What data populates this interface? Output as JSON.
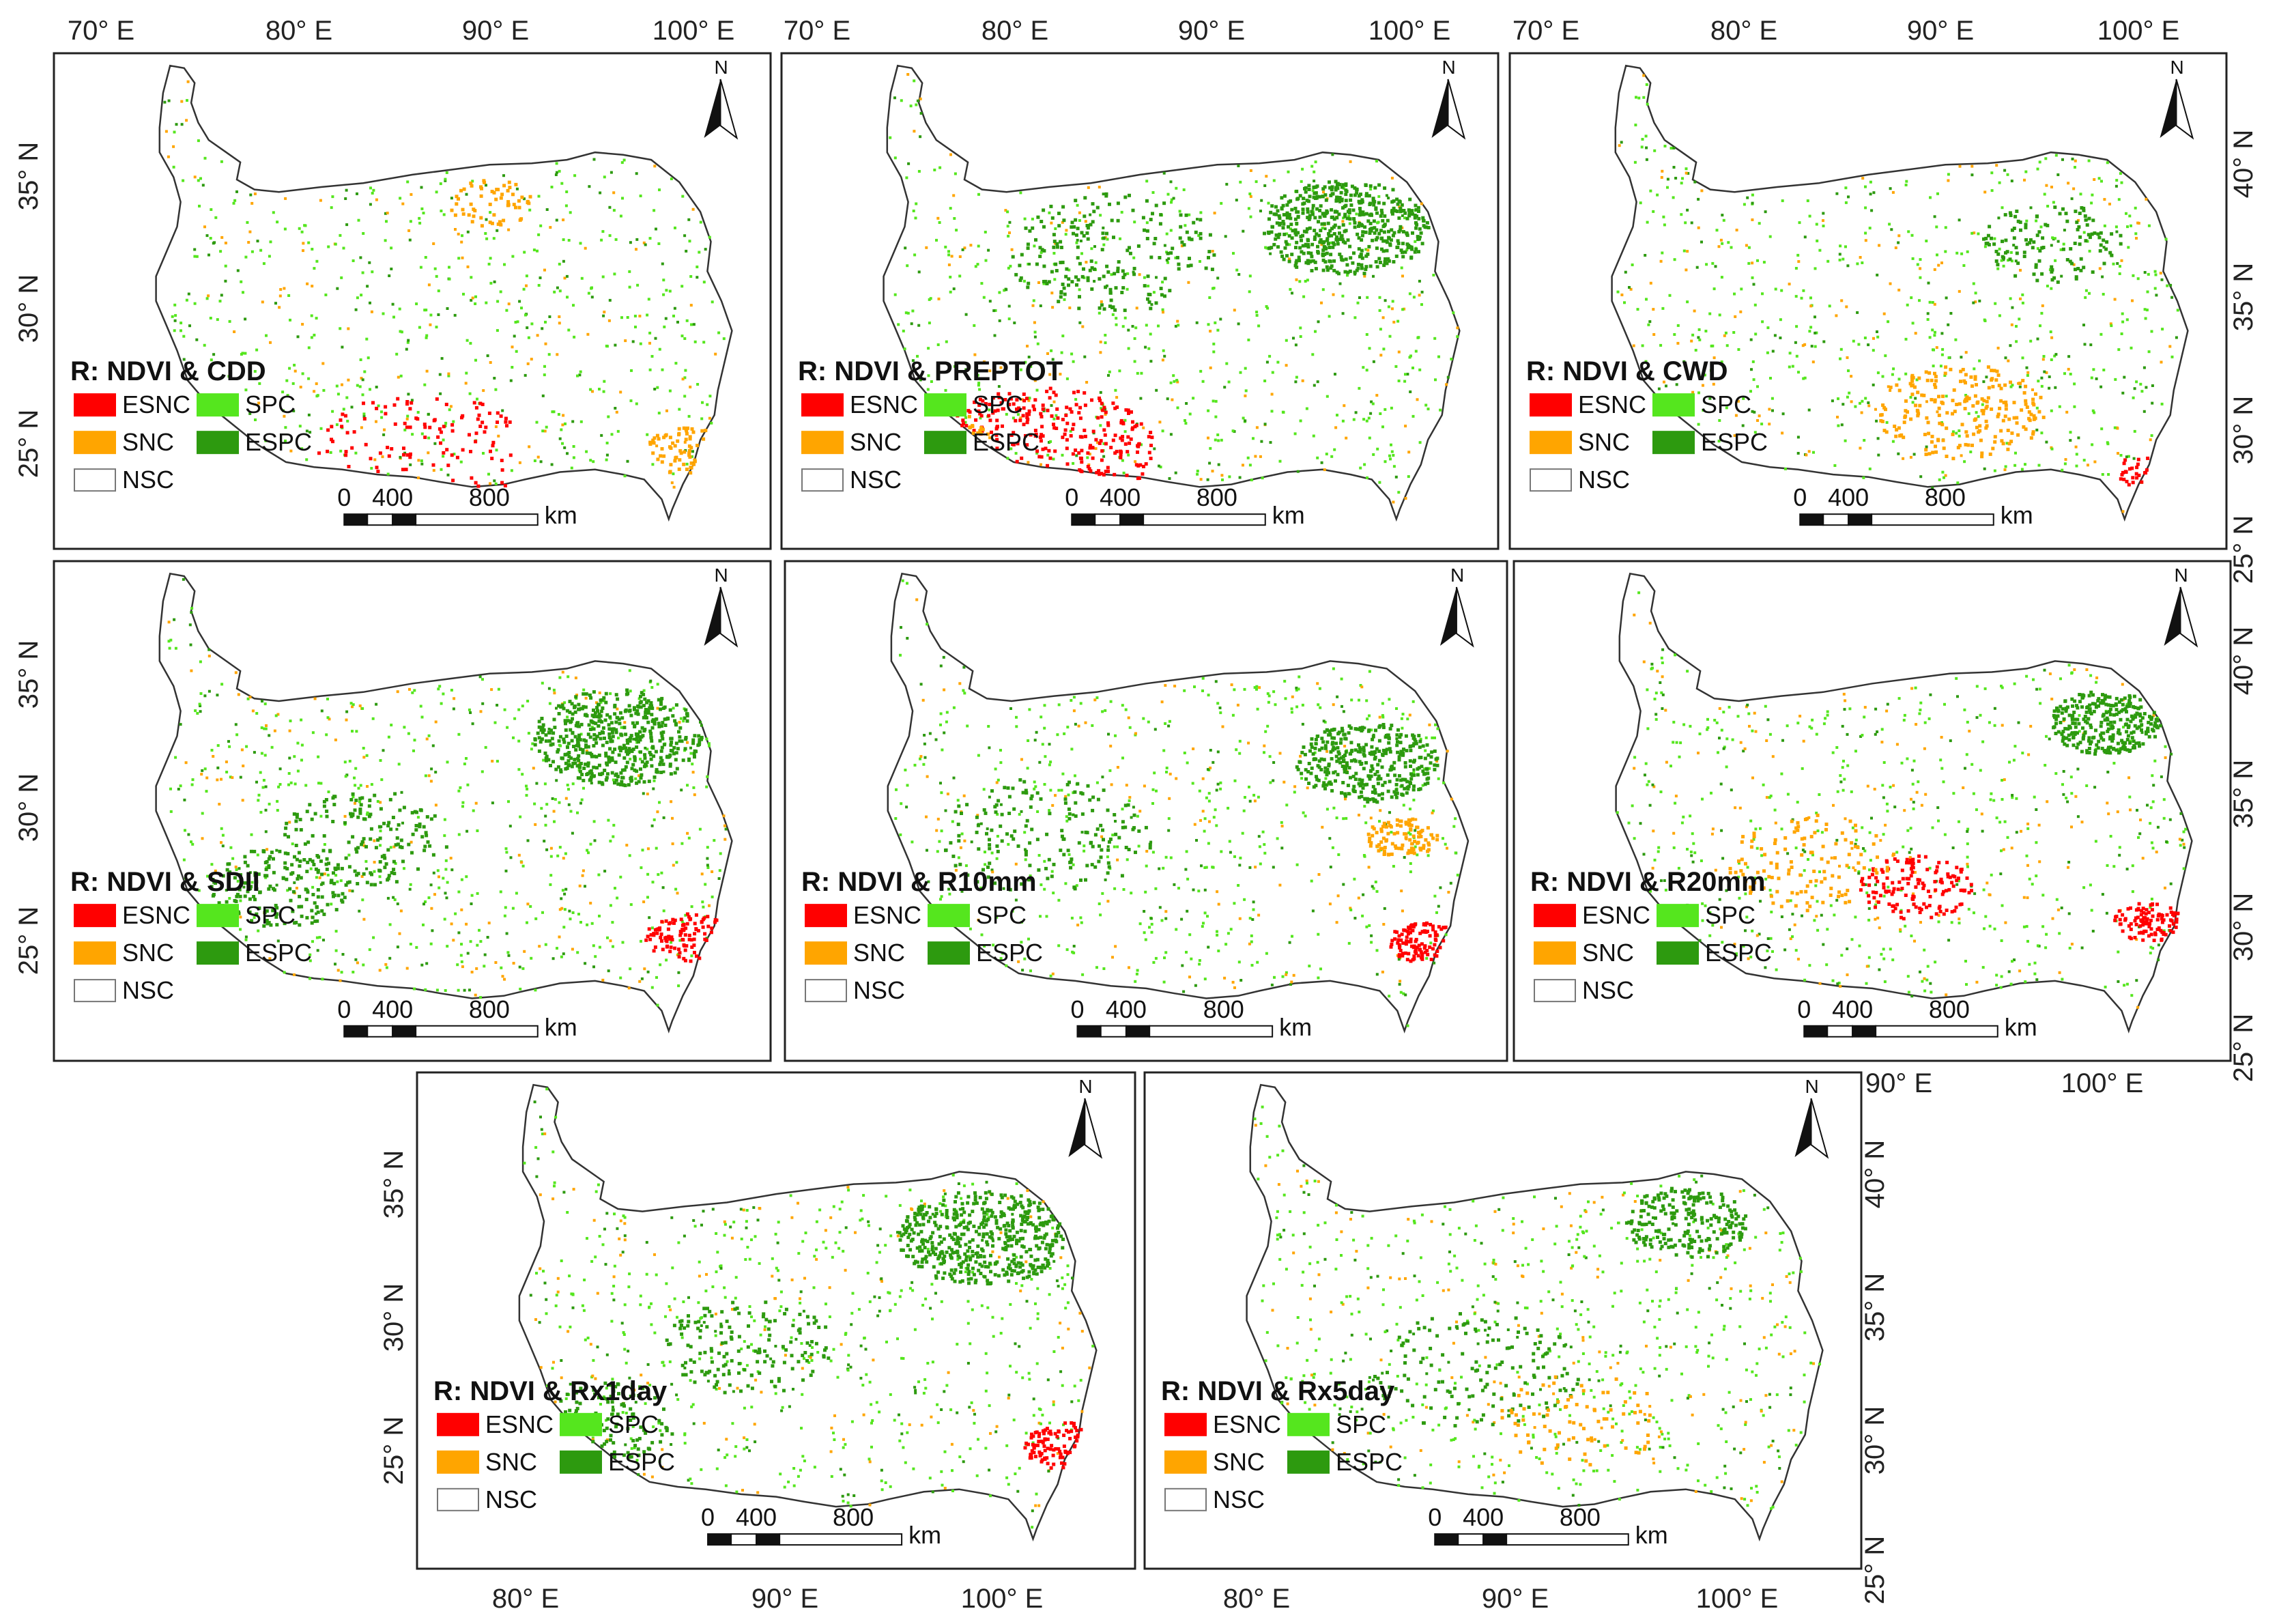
{
  "legend": {
    "items": [
      {
        "code": "ESNC",
        "color": "#ff0000"
      },
      {
        "code": "SPC",
        "color": "#55e61e"
      },
      {
        "code": "SNC",
        "color": "#ffa500"
      },
      {
        "code": "ESPC",
        "color": "#2d9a0f"
      },
      {
        "code": "NSC",
        "color": "#ffffff"
      }
    ]
  },
  "north_label": "N",
  "scale_bar": {
    "labels": [
      "0",
      "400",
      "800"
    ],
    "unit": "km"
  },
  "lon_ticks": [
    "70° E",
    "80° E",
    "90° E",
    "100° E"
  ],
  "lon_ticks_lower": [
    "80° E",
    "90° E",
    "100° E"
  ],
  "lat_ticks_left": [
    "35° N",
    "30° N",
    "25° N"
  ],
  "lat_ticks_right": [
    "40° N",
    "35° N",
    "30° N",
    "25° N"
  ],
  "panels": [
    {
      "title": "R: NDVI & CDD"
    },
    {
      "title": "R: NDVI & PREPTOT"
    },
    {
      "title": "R: NDVI & CWD"
    },
    {
      "title": "R: NDVI & SDII"
    },
    {
      "title": "R: NDVI & R10mm"
    },
    {
      "title": "R: NDVI & R20mm"
    },
    {
      "title": "R: NDVI & Rx1day"
    },
    {
      "title": "R: NDVI & Rx5day"
    }
  ]
}
